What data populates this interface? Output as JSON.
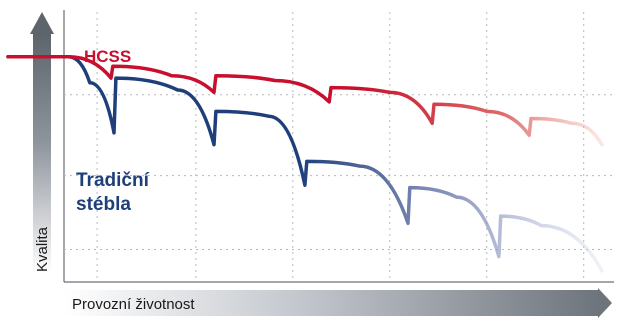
{
  "chart_data": {
    "type": "line",
    "title": "",
    "xlabel": "Provozní životnost",
    "ylabel": "Kvalita",
    "xlim": [
      0,
      10
    ],
    "ylim": [
      0,
      10
    ],
    "grid": true,
    "axis_arrows": true,
    "series": [
      {
        "name": "HCSS",
        "color": "#c8102e",
        "label_lines": [
          "HCSS"
        ],
        "fade": true,
        "points": [
          [
            0,
            9.3
          ],
          [
            1,
            9.3
          ],
          [
            1.7,
            8.4
          ],
          [
            1.73,
            8.9
          ],
          [
            2.7,
            8.5
          ],
          [
            3.4,
            7.8
          ],
          [
            3.43,
            8.5
          ],
          [
            4.4,
            8.3
          ],
          [
            5.3,
            7.4
          ],
          [
            5.33,
            8.0
          ],
          [
            6.3,
            7.8
          ],
          [
            7.0,
            6.5
          ],
          [
            7.03,
            7.3
          ],
          [
            7.9,
            7.0
          ],
          [
            8.6,
            6.0
          ],
          [
            8.63,
            6.7
          ],
          [
            9.3,
            6.5
          ],
          [
            9.8,
            5.6
          ]
        ]
      },
      {
        "name": "Tradiční stébla",
        "color": "#1f3f7a",
        "label_lines": [
          "Tradiční",
          "stébla"
        ],
        "fade": true,
        "points": [
          [
            0,
            9.3
          ],
          [
            1,
            9.3
          ],
          [
            1.35,
            8.2
          ],
          [
            1.75,
            6.1
          ],
          [
            1.78,
            8.4
          ],
          [
            2.8,
            7.9
          ],
          [
            3.4,
            5.6
          ],
          [
            3.43,
            7.0
          ],
          [
            4.3,
            6.8
          ],
          [
            4.9,
            3.9
          ],
          [
            4.93,
            4.9
          ],
          [
            5.8,
            4.7
          ],
          [
            6.6,
            2.3
          ],
          [
            6.63,
            3.8
          ],
          [
            7.4,
            3.4
          ],
          [
            8.1,
            0.9
          ],
          [
            8.13,
            2.6
          ],
          [
            8.8,
            2.2
          ],
          [
            9.8,
            0.3
          ]
        ]
      }
    ],
    "x_gridlines": [
      1.47,
      3.1,
      4.7,
      6.3,
      7.9,
      9.5
    ],
    "y_gridlines": [
      1.2,
      4.3,
      7.7
    ]
  }
}
